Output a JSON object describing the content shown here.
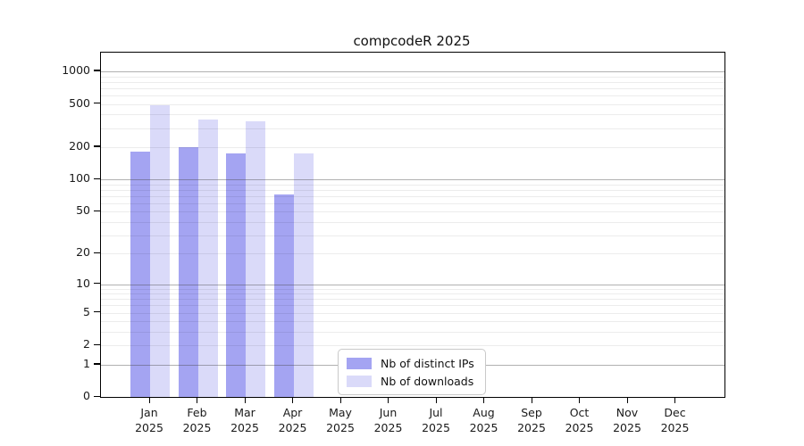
{
  "chart_data": {
    "type": "bar",
    "title": "compcodeR 2025",
    "y_scale": "log10(value+1)",
    "ylim": [
      0,
      1400
    ],
    "grid": true,
    "legend_position": "bottom-center",
    "y_ticks": [
      0,
      1,
      2,
      5,
      10,
      20,
      50,
      100,
      200,
      500,
      1000
    ],
    "y_minor_ticks": [
      3,
      4,
      6,
      7,
      8,
      9,
      30,
      40,
      60,
      70,
      80,
      90,
      300,
      400,
      600,
      700,
      800,
      900
    ],
    "categories": [
      {
        "month": "Jan",
        "year": "2025"
      },
      {
        "month": "Feb",
        "year": "2025"
      },
      {
        "month": "Mar",
        "year": "2025"
      },
      {
        "month": "Apr",
        "year": "2025"
      },
      {
        "month": "May",
        "year": "2025"
      },
      {
        "month": "Jun",
        "year": "2025"
      },
      {
        "month": "Jul",
        "year": "2025"
      },
      {
        "month": "Aug",
        "year": "2025"
      },
      {
        "month": "Sep",
        "year": "2025"
      },
      {
        "month": "Oct",
        "year": "2025"
      },
      {
        "month": "Nov",
        "year": "2025"
      },
      {
        "month": "Dec",
        "year": "2025"
      }
    ],
    "series": [
      {
        "name": "Nb of distinct IPs",
        "color": "#a4a4f2",
        "values": [
          183,
          201,
          175,
          73,
          null,
          null,
          null,
          null,
          null,
          null,
          null,
          null
        ]
      },
      {
        "name": "Nb of downloads",
        "color": "#dadaf9",
        "values": [
          487,
          358,
          345,
          176,
          null,
          null,
          null,
          null,
          null,
          null,
          null,
          null
        ]
      }
    ]
  }
}
